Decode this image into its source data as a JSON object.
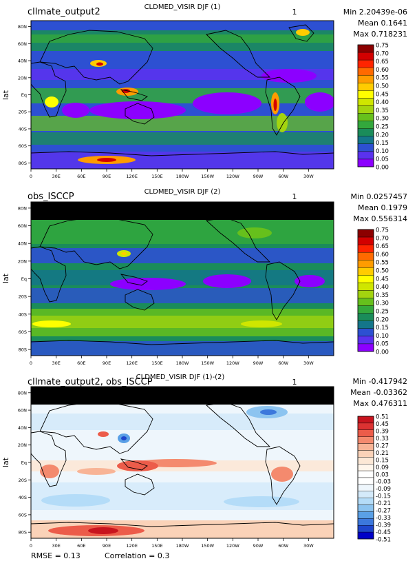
{
  "chart_data": [
    {
      "type": "heatmap",
      "case_label": "cllmate_output2",
      "title": "CLDMED_VISIR DJF (1)",
      "panel_number": "1",
      "stats": {
        "min": "Min 2.20439e-06",
        "mean": "Mean 0.1641",
        "max": "Max 0.718231"
      },
      "ylabel": "lat",
      "colorbar_labels": [
        "0.75",
        "0.70",
        "0.65",
        "0.60",
        "0.55",
        "0.50",
        "0.45",
        "0.40",
        "0.35",
        "0.30",
        "0.25",
        "0.20",
        "0.15",
        "0.10",
        "0.05",
        "0.00"
      ]
    },
    {
      "type": "heatmap",
      "case_label": "obs_ISCCP",
      "title": "CLDMED_VISIR DJF (2)",
      "panel_number": "1",
      "stats": {
        "min": "Min 0.0257457",
        "mean": "Mean 0.1979",
        "max": "Max 0.556314"
      },
      "ylabel": "lat",
      "colorbar_labels": [
        "0.75",
        "0.70",
        "0.65",
        "0.60",
        "0.55",
        "0.50",
        "0.45",
        "0.40",
        "0.35",
        "0.30",
        "0.25",
        "0.20",
        "0.15",
        "0.10",
        "0.05",
        "0.00"
      ]
    },
    {
      "type": "heatmap",
      "case_label": "cllmate_output2, obs_ISCCP",
      "title": "CLDMED_VISIR DJF (1)-(2)",
      "panel_number": "1",
      "stats": {
        "min": "Min -0.417942",
        "mean": "Mean -0.03362",
        "max": "Max 0.476311"
      },
      "ylabel": "lat",
      "colorbar_labels": [
        "0.51",
        "0.45",
        "0.39",
        "0.33",
        "0.27",
        "0.21",
        "0.15",
        "0.09",
        "0.03",
        "-0.03",
        "-0.09",
        "-0.15",
        "-0.21",
        "-0.27",
        "-0.33",
        "-0.39",
        "-0.45",
        "-0.51"
      ],
      "footer": {
        "rmse": "RMSE = 0.13",
        "correlation": "Correlation = 0.3"
      }
    }
  ],
  "axes": {
    "x_ticks": [
      "0",
      "30E",
      "60E",
      "90E",
      "120E",
      "150E",
      "180W",
      "150W",
      "120W",
      "90W",
      "60W",
      "30W"
    ],
    "y_ticks": [
      "80N",
      "60N",
      "40N",
      "20N",
      "Eq",
      "20S",
      "40S",
      "60S",
      "80S"
    ]
  },
  "colors": {
    "abs_scale": [
      "#8c0000",
      "#d30000",
      "#ff2400",
      "#ff6a00",
      "#ff9c00",
      "#ffcc00",
      "#ffff00",
      "#cfe600",
      "#a3d40f",
      "#66c01c",
      "#33a83c",
      "#1a8c5a",
      "#14768a",
      "#2d50d2",
      "#5a32ee",
      "#8c00ff"
    ],
    "diff_scale": [
      "#c8141e",
      "#dc3232",
      "#ec5c4a",
      "#f48a6e",
      "#f8b496",
      "#fad2b8",
      "#fce8d6",
      "#fff6ec",
      "#ffffff",
      "#ffffff",
      "#eef6fc",
      "#d4eafa",
      "#b4dcf8",
      "#8cc4f0",
      "#5aa0e6",
      "#3c78dc",
      "#1e46cc",
      "#0000c8"
    ]
  }
}
